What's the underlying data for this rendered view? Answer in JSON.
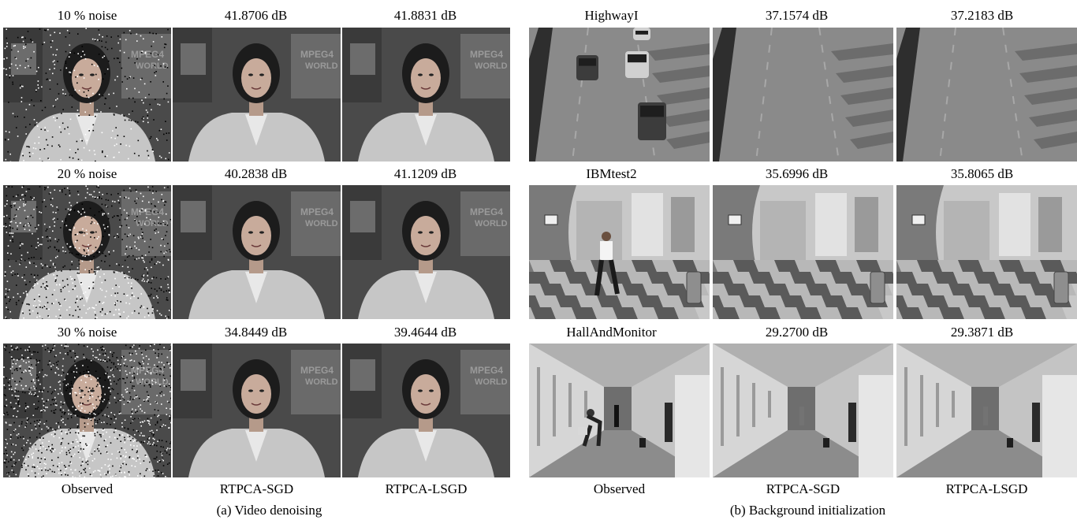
{
  "panel_a": {
    "caption": "(a) Video denoising",
    "rows": [
      {
        "labels": [
          "10 % noise",
          "41.8706 dB",
          "41.8831 dB"
        ],
        "noise": 0.1
      },
      {
        "labels": [
          "20 % noise",
          "40.2838 dB",
          "41.1209 dB"
        ],
        "noise": 0.2
      },
      {
        "labels": [
          "30 % noise",
          "34.8449 dB",
          "39.4644 dB"
        ],
        "noise": 0.3
      }
    ],
    "columns": [
      "Observed",
      "RTPCA-SGD",
      "RTPCA-LSGD"
    ],
    "sign_text": [
      "MPEG4",
      "WORLD"
    ]
  },
  "panel_b": {
    "caption": "(b) Background initialization",
    "rows": [
      {
        "labels": [
          "HighwayI",
          "37.1574 dB",
          "37.2183 dB"
        ]
      },
      {
        "labels": [
          "IBMtest2",
          "35.6996 dB",
          "35.8065 dB"
        ]
      },
      {
        "labels": [
          "HallAndMonitor",
          "29.2700 dB",
          "29.3871 dB"
        ]
      }
    ],
    "columns": [
      "Observed",
      "RTPCA-SGD",
      "RTPCA-LSGD"
    ]
  }
}
